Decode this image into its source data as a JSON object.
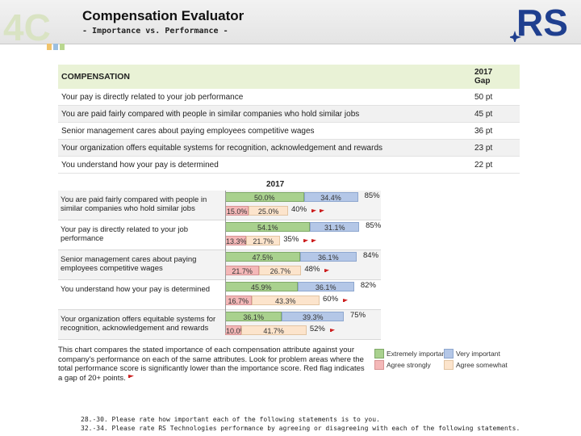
{
  "header": {
    "title": "Compensation Evaluator",
    "subtitle": "- Importance vs. Performance -",
    "logo_left": "4C",
    "logo_right": "RS"
  },
  "gap_table": {
    "col_label": "COMPENSATION",
    "col_gap_line1": "2017",
    "col_gap_line2": "Gap",
    "rows": [
      {
        "label": "Your pay is directly related to your job performance",
        "gap": "50 pt"
      },
      {
        "label": "You are paid fairly compared with people in similar companies who hold similar jobs",
        "gap": "45 pt"
      },
      {
        "label": "Senior management cares about paying employees competitive wages",
        "gap": "36 pt"
      },
      {
        "label": "Your organization offers equitable systems for recognition, acknowledgement and rewards",
        "gap": "23 pt"
      },
      {
        "label": "You understand how your pay is determined",
        "gap": "22 pt"
      }
    ]
  },
  "chart": {
    "year": "2017",
    "rows": [
      {
        "label": "You are paid fairly compared with people in similar companies who hold similar jobs",
        "imp_extreme": "50.0%",
        "imp_very": "34.4%",
        "imp_total": "85%",
        "perf_strong": "15.0%",
        "perf_some": "25.0%",
        "perf_total": "40%",
        "flags": 2
      },
      {
        "label": "Your pay is directly related to your job performance",
        "imp_extreme": "54.1%",
        "imp_very": "31.1%",
        "imp_total": "85%",
        "perf_strong": "13.3%",
        "perf_some": "21.7%",
        "perf_total": "35%",
        "flags": 2
      },
      {
        "label": "Senior management cares about paying employees competitive wages",
        "imp_extreme": "47.5%",
        "imp_very": "36.1%",
        "imp_total": "84%",
        "perf_strong": "21.7%",
        "perf_some": "26.7%",
        "perf_total": "48%",
        "flags": 1
      },
      {
        "label": "You understand how your pay is determined",
        "imp_extreme": "45.9%",
        "imp_very": "36.1%",
        "imp_total": "82%",
        "perf_strong": "16.7%",
        "perf_some": "43.3%",
        "perf_total": "60%",
        "flags": 1
      },
      {
        "label": "Your organization offers equitable systems for recognition, acknowledgement and rewards",
        "imp_extreme": "36.1%",
        "imp_very": "39.3%",
        "imp_total": "75%",
        "perf_strong": "10.0%",
        "perf_some": "41.7%",
        "perf_total": "52%",
        "flags": 1
      }
    ]
  },
  "chart_data": {
    "type": "bar",
    "title": "2017",
    "categories": [
      "You are paid fairly compared with people in similar companies who hold similar jobs",
      "Your pay is directly related to your job performance",
      "Senior management cares about paying employees competitive wages",
      "You understand how your pay is determined",
      "Your organization offers equitable systems for recognition, acknowledgement and rewards"
    ],
    "series": [
      {
        "name": "Extremely important",
        "values": [
          50.0,
          54.1,
          47.5,
          45.9,
          36.1
        ]
      },
      {
        "name": "Very important",
        "values": [
          34.4,
          31.1,
          36.1,
          36.1,
          39.3
        ]
      },
      {
        "name": "Agree strongly",
        "values": [
          15.0,
          13.3,
          21.7,
          16.7,
          10.0
        ]
      },
      {
        "name": "Agree somewhat",
        "values": [
          25.0,
          21.7,
          26.7,
          43.3,
          41.7
        ]
      }
    ],
    "importance_totals": [
      85,
      85,
      84,
      82,
      75
    ],
    "performance_totals": [
      40,
      35,
      48,
      60,
      52
    ],
    "stacked": true,
    "legend_position": "bottom-right"
  },
  "note": "This chart compares the stated importance of each compensation attribute against your company's performance on each of the same attributes. Look for problem areas where the total performance score is significantly lower than the importance score. Red flag indicates a gap of 20+ points.",
  "legend": {
    "extreme": "Extremely important",
    "very": "Very important",
    "strong": "Agree strongly",
    "some": "Agree somewhat"
  },
  "colors": {
    "extreme": "#a9d18e",
    "very": "#b4c7e7",
    "strong": "#f4b8b8",
    "some": "#fce4cc",
    "flag": "#cc1f1f",
    "rs_blue": "#1f3f8f"
  },
  "footer": {
    "line1": "28.-30. Please rate how important each of the following statements is to you.",
    "line2": "32.-34. Please rate RS Technologies performance by agreeing or disagreeing with each of the following statements."
  }
}
